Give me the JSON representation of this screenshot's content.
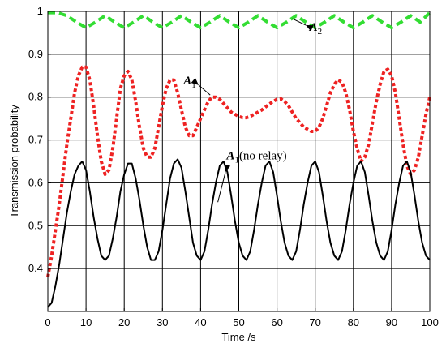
{
  "chart_data": {
    "type": "line",
    "xlabel": "Time /s",
    "ylabel": "Transmission probability",
    "xlim": [
      0,
      100
    ],
    "ylim": [
      0.3,
      1.0
    ],
    "xticks": [
      0,
      10,
      20,
      30,
      40,
      50,
      60,
      70,
      80,
      90,
      100
    ],
    "yticks": [
      0.4,
      0.5,
      0.6,
      0.7,
      0.8,
      0.9,
      1
    ],
    "ytick_labels": [
      "0.4",
      "0.5",
      "0.6",
      "0.7",
      "0.8",
      "0.9",
      "1"
    ],
    "grid": true,
    "series": [
      {
        "name": "A2",
        "style": "dashed",
        "color": "#33dd33",
        "x": [
          0,
          2.5,
          5,
          7.5,
          10,
          12.5,
          15,
          17.5,
          20,
          22.5,
          25,
          27.5,
          30,
          32.5,
          35,
          37.5,
          40,
          42.5,
          45,
          47.5,
          50,
          52.5,
          55,
          57.5,
          60,
          62.5,
          65,
          67.5,
          70,
          72.5,
          75,
          77.5,
          80,
          82.5,
          85,
          87.5,
          90,
          92.5,
          95,
          97.5,
          100
        ],
        "y": [
          0.997,
          0.997,
          0.99,
          0.975,
          0.962,
          0.975,
          0.99,
          0.975,
          0.962,
          0.975,
          0.99,
          0.975,
          0.962,
          0.975,
          0.99,
          0.975,
          0.962,
          0.975,
          0.99,
          0.975,
          0.962,
          0.975,
          0.99,
          0.975,
          0.962,
          0.975,
          0.99,
          0.975,
          0.962,
          0.975,
          0.99,
          0.975,
          0.962,
          0.975,
          0.99,
          0.975,
          0.962,
          0.975,
          0.99,
          0.975,
          0.997
        ]
      },
      {
        "name": "A1",
        "style": "dotted",
        "color": "#ee2222",
        "x": [
          0,
          1,
          2,
          3,
          4,
          5,
          6,
          7,
          8,
          9,
          10,
          11,
          12,
          13,
          14,
          15,
          16,
          17,
          18,
          19,
          20,
          21,
          22,
          23,
          24,
          25,
          26,
          27,
          28,
          29,
          30,
          31,
          32,
          33,
          34,
          35,
          36,
          37,
          38,
          39,
          40,
          41,
          42,
          43,
          44,
          45,
          46,
          47,
          48,
          49,
          50,
          51,
          52,
          53,
          54,
          55,
          56,
          57,
          58,
          59,
          60,
          61,
          62,
          63,
          64,
          65,
          66,
          67,
          68,
          69,
          70,
          71,
          72,
          73,
          74,
          75,
          76,
          77,
          78,
          79,
          80,
          81,
          82,
          83,
          84,
          85,
          86,
          87,
          88,
          89,
          90,
          91,
          92,
          93,
          94,
          95,
          96,
          97,
          98,
          99,
          100
        ],
        "y": [
          0.38,
          0.43,
          0.49,
          0.55,
          0.62,
          0.69,
          0.75,
          0.81,
          0.85,
          0.87,
          0.87,
          0.84,
          0.78,
          0.71,
          0.65,
          0.62,
          0.63,
          0.68,
          0.75,
          0.82,
          0.85,
          0.86,
          0.84,
          0.79,
          0.73,
          0.68,
          0.66,
          0.66,
          0.68,
          0.73,
          0.78,
          0.82,
          0.84,
          0.84,
          0.81,
          0.77,
          0.73,
          0.71,
          0.71,
          0.73,
          0.75,
          0.77,
          0.79,
          0.8,
          0.8,
          0.795,
          0.785,
          0.775,
          0.765,
          0.76,
          0.755,
          0.752,
          0.752,
          0.755,
          0.76,
          0.765,
          0.77,
          0.777,
          0.784,
          0.79,
          0.795,
          0.796,
          0.79,
          0.78,
          0.765,
          0.75,
          0.74,
          0.73,
          0.725,
          0.72,
          0.72,
          0.73,
          0.75,
          0.78,
          0.81,
          0.83,
          0.84,
          0.835,
          0.81,
          0.77,
          0.72,
          0.68,
          0.65,
          0.66,
          0.69,
          0.74,
          0.79,
          0.83,
          0.86,
          0.865,
          0.85,
          0.81,
          0.75,
          0.69,
          0.64,
          0.62,
          0.63,
          0.66,
          0.71,
          0.76,
          0.8
        ]
      },
      {
        "name": "A1(no relay)",
        "style": "solid",
        "color": "#000000",
        "x": [
          0,
          1,
          2,
          3,
          4,
          5,
          6,
          7,
          8,
          9,
          10,
          11,
          12,
          13,
          14,
          15,
          16,
          17,
          18,
          19,
          20,
          21,
          22,
          23,
          24,
          25,
          26,
          27,
          28,
          29,
          30,
          31,
          32,
          33,
          34,
          35,
          36,
          37,
          38,
          39,
          40,
          41,
          42,
          43,
          44,
          45,
          46,
          47,
          48,
          49,
          50,
          51,
          52,
          53,
          54,
          55,
          56,
          57,
          58,
          59,
          60,
          61,
          62,
          63,
          64,
          65,
          66,
          67,
          68,
          69,
          70,
          71,
          72,
          73,
          74,
          75,
          76,
          77,
          78,
          79,
          80,
          81,
          82,
          83,
          84,
          85,
          86,
          87,
          88,
          89,
          90,
          91,
          92,
          93,
          94,
          95,
          96,
          97,
          98,
          99,
          100
        ],
        "y": [
          0.31,
          0.32,
          0.36,
          0.41,
          0.47,
          0.53,
          0.58,
          0.62,
          0.64,
          0.65,
          0.63,
          0.58,
          0.52,
          0.47,
          0.43,
          0.42,
          0.43,
          0.47,
          0.52,
          0.58,
          0.62,
          0.645,
          0.645,
          0.61,
          0.56,
          0.5,
          0.45,
          0.42,
          0.42,
          0.44,
          0.49,
          0.55,
          0.61,
          0.645,
          0.655,
          0.635,
          0.58,
          0.52,
          0.46,
          0.43,
          0.42,
          0.44,
          0.49,
          0.55,
          0.6,
          0.64,
          0.65,
          0.625,
          0.57,
          0.51,
          0.46,
          0.43,
          0.42,
          0.44,
          0.49,
          0.55,
          0.6,
          0.64,
          0.65,
          0.625,
          0.57,
          0.51,
          0.46,
          0.43,
          0.42,
          0.44,
          0.49,
          0.55,
          0.6,
          0.64,
          0.65,
          0.625,
          0.57,
          0.51,
          0.46,
          0.43,
          0.42,
          0.44,
          0.49,
          0.55,
          0.6,
          0.64,
          0.65,
          0.625,
          0.57,
          0.51,
          0.46,
          0.43,
          0.42,
          0.44,
          0.49,
          0.55,
          0.6,
          0.64,
          0.65,
          0.625,
          0.57,
          0.51,
          0.46,
          0.43,
          0.42
        ]
      }
    ],
    "annotations": [
      {
        "label": "A",
        "sub": "2",
        "suffix": "",
        "x": 72,
        "y": 0.97
      },
      {
        "label": "A",
        "sub": "1",
        "suffix": "",
        "x": 38.5,
        "y": 0.82
      },
      {
        "label": "A",
        "sub": "1",
        "suffix": "(no relay)",
        "x": 55,
        "y": 0.63
      }
    ]
  }
}
